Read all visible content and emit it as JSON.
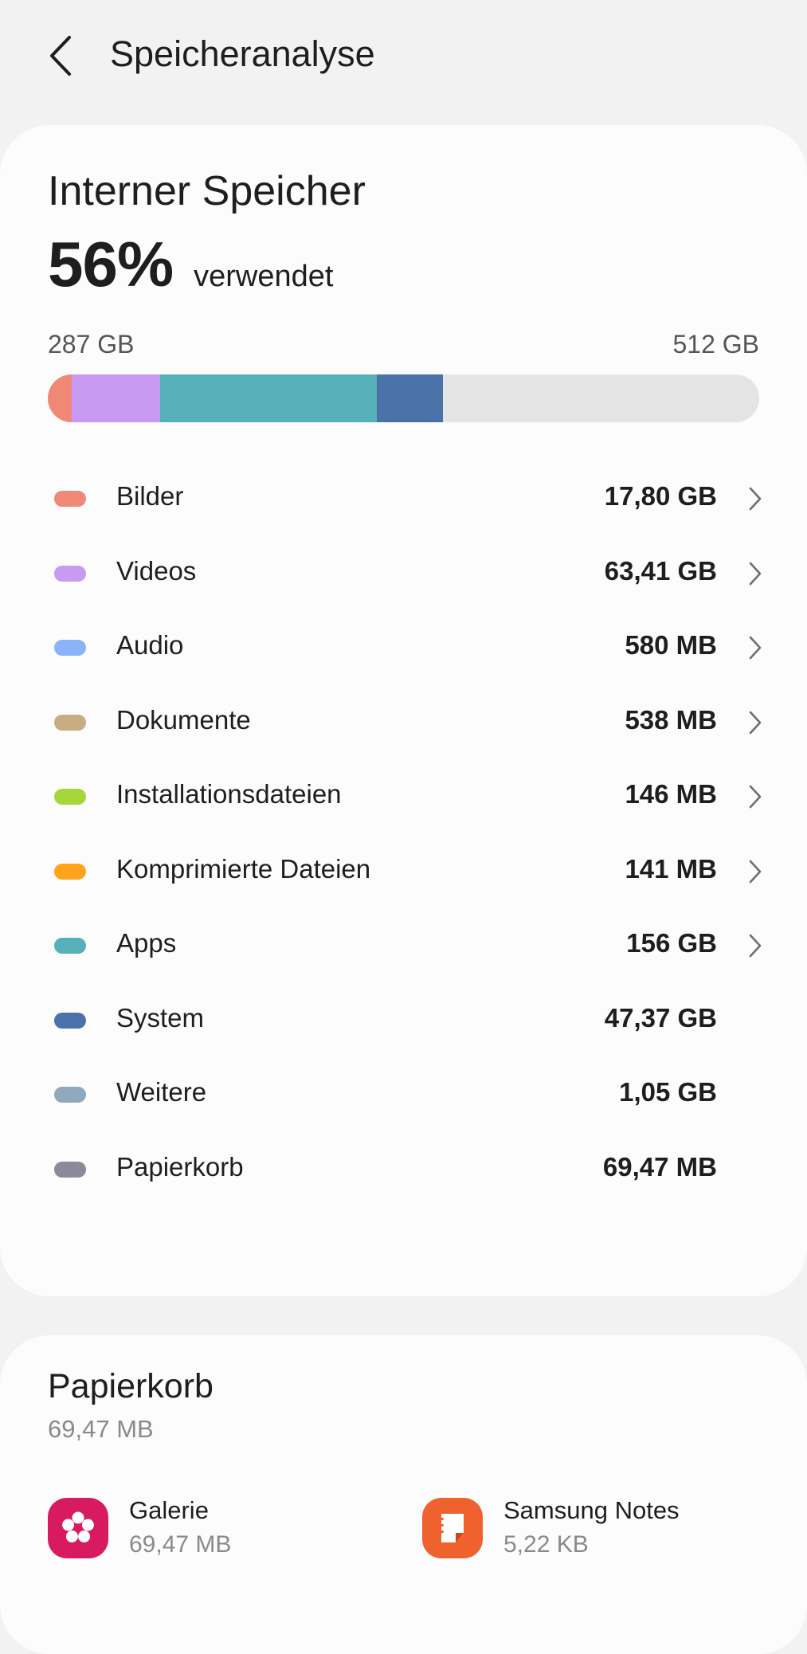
{
  "header": {
    "title": "Speicheranalyse",
    "back_icon": "chevron-left-icon"
  },
  "storage": {
    "title": "Interner Speicher",
    "percent": "56%",
    "percent_label": "verwendet",
    "used": "287 GB",
    "total": "512 GB",
    "usage_fraction": 0.56,
    "bar_segments": [
      {
        "category": "Bilder",
        "fraction": 0.034,
        "color": "#f08878"
      },
      {
        "category": "Videos",
        "fraction": 0.124,
        "color": "#c99af2"
      },
      {
        "category": "Apps",
        "fraction": 0.305,
        "color": "#55b0b8"
      },
      {
        "category": "System",
        "fraction": 0.092,
        "color": "#4a72a8"
      }
    ],
    "categories": [
      {
        "label": "Bilder",
        "size": "17,80 GB",
        "color": "#f08878",
        "chevron": true
      },
      {
        "label": "Videos",
        "size": "63,41 GB",
        "color": "#c99af2",
        "chevron": true
      },
      {
        "label": "Audio",
        "size": "580 MB",
        "color": "#8ab4f8",
        "chevron": true
      },
      {
        "label": "Dokumente",
        "size": "538 MB",
        "color": "#c9ad82",
        "chevron": true
      },
      {
        "label": "Installationsdateien",
        "size": "146 MB",
        "color": "#a6d63c",
        "chevron": true
      },
      {
        "label": "Komprimierte Dateien",
        "size": "141 MB",
        "color": "#ffa31a",
        "chevron": true
      },
      {
        "label": "Apps",
        "size": "156 GB",
        "color": "#55b0b8",
        "chevron": true
      },
      {
        "label": "System",
        "size": "47,37 GB",
        "color": "#4a72a8",
        "chevron": false
      },
      {
        "label": "Weitere",
        "size": "1,05 GB",
        "color": "#8fa9bf",
        "chevron": false
      },
      {
        "label": "Papierkorb",
        "size": "69,47 MB",
        "color": "#8a8a99",
        "chevron": false
      }
    ]
  },
  "trash": {
    "title": "Papierkorb",
    "size": "69,47 MB",
    "apps": [
      {
        "name": "Galerie",
        "size": "69,47 MB",
        "icon": "flower-icon",
        "color": "#d81b60"
      },
      {
        "name": "Samsung Notes",
        "size": "5,22 KB",
        "icon": "note-icon",
        "color": "#f0622d"
      }
    ]
  }
}
